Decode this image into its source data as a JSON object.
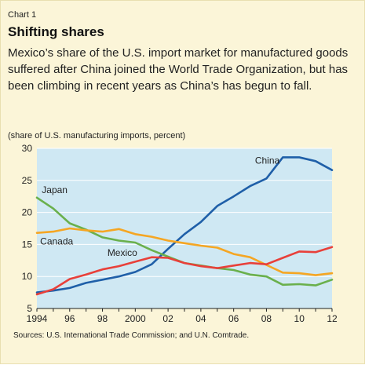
{
  "header": {
    "chart_number": "Chart 1",
    "title": "Shifting shares",
    "subtitle": "Mexico’s share of the U.S. import market for manufactured goods suffered after China joined the World Trade Organization, but has been climbing in recent years as China’s has begun to fall.",
    "unit_note": "(share of U.S. manufacturing imports, percent)"
  },
  "footer": {
    "source": "Sources: U.S. International Trade Commission; and U.N. Comtrade."
  },
  "colors": {
    "background": "#fbf5d8",
    "plot_area": "#cfe8f3",
    "China": "#1f5fa8",
    "Japan": "#6ab04c",
    "Canada": "#f5a623",
    "Mexico": "#e8403a"
  },
  "chart_data": {
    "type": "line",
    "title": "Shifting shares",
    "xlabel": "",
    "ylabel": "(share of U.S. manufacturing imports, percent)",
    "xlim": [
      1994,
      2012
    ],
    "ylim": [
      5,
      30
    ],
    "x_ticks": [
      1994,
      1996,
      1998,
      2000,
      2002,
      2004,
      2006,
      2008,
      2010,
      2012
    ],
    "x_tick_labels": [
      "1994",
      "96",
      "98",
      "2000",
      "02",
      "04",
      "06",
      "08",
      "10",
      "12"
    ],
    "y_ticks": [
      5,
      10,
      15,
      20,
      25,
      30
    ],
    "y_tick_labels": [
      "5",
      "10",
      "15",
      "20",
      "25",
      "30"
    ],
    "grid": true,
    "legend": "labels on lines",
    "series": [
      {
        "name": "China",
        "x": [
          1994,
          1995,
          1996,
          1997,
          1998,
          1999,
          2000,
          2001,
          2002,
          2003,
          2004,
          2005,
          2006,
          2007,
          2008,
          2009,
          2010,
          2011,
          2012
        ],
        "values": [
          7.5,
          7.8,
          8.2,
          9.0,
          9.5,
          10.0,
          10.7,
          11.9,
          14.3,
          16.6,
          18.5,
          21.0,
          22.5,
          24.1,
          25.3,
          28.6,
          28.6,
          28.0,
          26.6
        ]
      },
      {
        "name": "Japan",
        "x": [
          1994,
          1995,
          1996,
          1997,
          1998,
          1999,
          2000,
          2001,
          2002,
          2003,
          2004,
          2005,
          2006,
          2007,
          2008,
          2009,
          2010,
          2011,
          2012
        ],
        "values": [
          22.3,
          20.6,
          18.3,
          17.3,
          16.1,
          15.6,
          15.3,
          14.1,
          13.1,
          12.1,
          11.7,
          11.3,
          11.0,
          10.3,
          10.0,
          8.7,
          8.8,
          8.6,
          9.5
        ]
      },
      {
        "name": "Canada",
        "x": [
          1994,
          1995,
          1996,
          1997,
          1998,
          1999,
          2000,
          2001,
          2002,
          2003,
          2004,
          2005,
          2006,
          2007,
          2008,
          2009,
          2010,
          2011,
          2012
        ],
        "values": [
          16.8,
          17.0,
          17.5,
          17.2,
          17.0,
          17.4,
          16.6,
          16.2,
          15.6,
          15.2,
          14.8,
          14.5,
          13.5,
          13.0,
          11.8,
          10.6,
          10.5,
          10.2,
          10.5
        ]
      },
      {
        "name": "Mexico",
        "x": [
          1994,
          1995,
          1996,
          1997,
          1998,
          1999,
          2000,
          2001,
          2002,
          2003,
          2004,
          2005,
          2006,
          2007,
          2008,
          2009,
          2010,
          2011,
          2012
        ],
        "values": [
          7.2,
          8.0,
          9.6,
          10.3,
          11.1,
          11.6,
          12.3,
          13.0,
          12.9,
          12.1,
          11.6,
          11.3,
          11.7,
          12.1,
          11.9,
          12.9,
          13.9,
          13.8,
          14.6
        ]
      }
    ]
  }
}
